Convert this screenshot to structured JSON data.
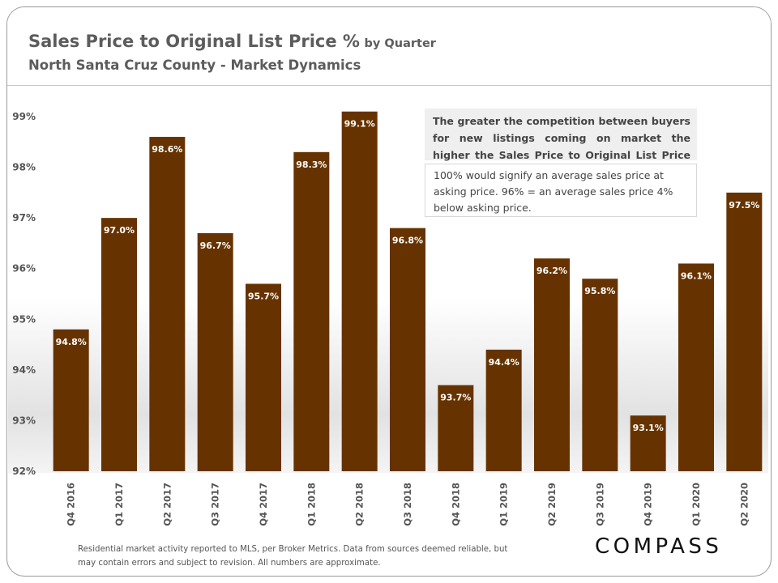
{
  "header": {
    "title_main": "Sales Price to Original List Price %",
    "title_suffix": "by Quarter",
    "subtitle": "North Santa Cruz County - Market Dynamics"
  },
  "notes": {
    "competition": "The greater the competition between buyers for new listings coming on market the higher the Sales Price to Original List Price Percentage.",
    "explanation": "100% would signify an average sales price at asking price. 96% = an average sales price 4% below asking price."
  },
  "footer": {
    "disclaimer": "Residential market activity reported to MLS, per Broker Metrics. Data from sources deemed reliable, but may contain errors and subject to revision. All numbers are approximate.",
    "logo": "COMPASS"
  },
  "colors": {
    "bar": "#663300",
    "label_text": "#ffffff",
    "axis_text": "#555555"
  },
  "chart_data": {
    "type": "bar",
    "title": "Sales Price to Original List Price % by Quarter",
    "xlabel": "",
    "ylabel": "",
    "ylim": [
      92,
      99
    ],
    "yticks": [
      "92%",
      "93%",
      "94%",
      "95%",
      "96%",
      "97%",
      "98%",
      "99%"
    ],
    "grid": false,
    "categories": [
      "Q4 2016",
      "Q1 2017",
      "Q2 2017",
      "Q3 2017",
      "Q4 2017",
      "Q1 2018",
      "Q2 2018",
      "Q3 2018",
      "Q4 2018",
      "Q1 2019",
      "Q2 2019",
      "Q3 2019",
      "Q4 2019",
      "Q1 2020",
      "Q2 2020"
    ],
    "values": [
      94.8,
      97.0,
      98.6,
      96.7,
      95.7,
      98.3,
      99.1,
      96.8,
      93.7,
      94.4,
      96.2,
      95.8,
      93.1,
      96.1,
      97.5
    ],
    "data_labels": [
      "94.8%",
      "97.0%",
      "98.6%",
      "96.7%",
      "95.7%",
      "98.3%",
      "99.1%",
      "96.8%",
      "93.7%",
      "94.4%",
      "96.2%",
      "95.8%",
      "93.1%",
      "96.1%",
      "97.5%"
    ]
  }
}
